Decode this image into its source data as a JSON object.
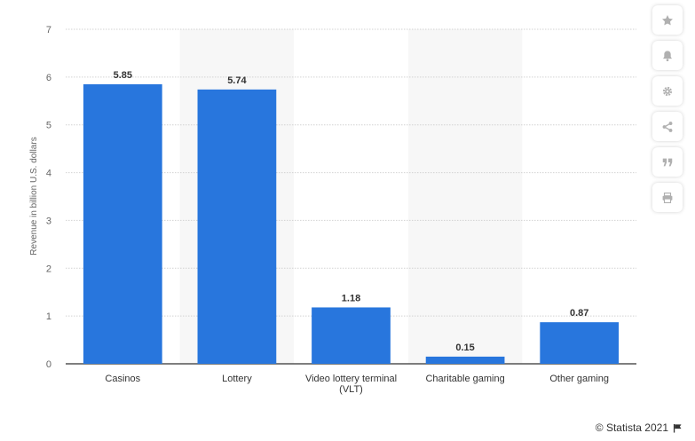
{
  "chart_data": {
    "type": "bar",
    "categories": [
      "Casinos",
      "Lottery",
      "Video lottery terminal\n(VLT)",
      "Charitable gaming",
      "Other gaming"
    ],
    "values": [
      5.85,
      5.74,
      1.18,
      0.15,
      0.87
    ],
    "value_labels": [
      "5.85",
      "5.74",
      "1.18",
      "0.15",
      "0.87"
    ],
    "ylabel": "Revenue in billion U.S. dollars",
    "ylim": [
      0,
      7
    ],
    "yticks": [
      "0",
      "1",
      "2",
      "3",
      "4",
      "5",
      "6",
      "7"
    ],
    "grid": true,
    "bar_color": "#2876dd"
  },
  "toolbar": {
    "buttons": [
      {
        "icon": "star-icon"
      },
      {
        "icon": "bell-icon"
      },
      {
        "icon": "gear-icon"
      },
      {
        "icon": "share-icon"
      },
      {
        "icon": "quote-icon"
      },
      {
        "icon": "print-icon"
      }
    ]
  },
  "footer": {
    "credit": "© Statista 2021",
    "icon": "flag-icon"
  },
  "colors": {
    "bar": "#2876dd",
    "grid": "#d2d2d2",
    "band": "#f7f7f7",
    "icon": "#b0b0b0"
  }
}
